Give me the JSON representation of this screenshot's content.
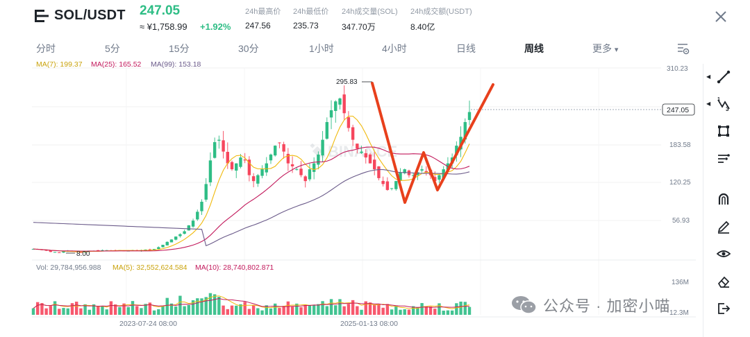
{
  "header": {
    "pair": "SOL/USDT",
    "price": "247.05",
    "price_cny": "≈ ¥1,758.99",
    "change": "+1.92%",
    "stats": [
      {
        "label": "24h最高价",
        "value": "247.56"
      },
      {
        "label": "24h最低价",
        "value": "235.73"
      },
      {
        "label": "24h成交量(SOL)",
        "value": "347.70万"
      },
      {
        "label": "24h成交额(USDT)",
        "value": "8.40亿"
      }
    ]
  },
  "tabs": [
    "分时",
    "5分",
    "15分",
    "30分",
    "1小时",
    "4小时",
    "日线",
    "周线",
    "更多"
  ],
  "active_tab": "周线",
  "more_caret": "▾",
  "indicators": {
    "ma7": "MA(7): 199.37",
    "ma25": "MA(25): 165.52",
    "ma99": "MA(99): 153.18",
    "vol": "Vol: 29,784,956.988",
    "vma5": "MA(5): 32,552,624.584",
    "vma10": "MA(10): 28,740,802.871"
  },
  "price_axis": [
    "310.23",
    "183.58",
    "120.25",
    "56.93"
  ],
  "current_price_tag": "247.05",
  "high_marker": "295.83",
  "low_marker": "8.00",
  "volume_axis": [
    "136M",
    "12.3M"
  ],
  "time_axis": [
    "2023-07-24 08:00",
    "2025-01-13 08:00"
  ],
  "watermark_chart": "BINANCE",
  "watermark_text": "公众号 · 加密小喵",
  "colors": {
    "up": "#2ebd85",
    "down": "#f6465d",
    "ma7": "#f0b90b",
    "ma25": "#c2185b",
    "ma99": "#6b5b8a",
    "drawing": "#e8401c"
  },
  "chart_data": {
    "type": "candlestick",
    "current_price": 247.05,
    "high": 295.83,
    "low": 8.0,
    "closes": [
      15,
      14,
      13,
      12,
      10,
      10,
      9,
      11,
      12,
      11,
      10,
      9,
      11,
      12,
      12,
      12,
      13,
      13,
      12,
      12,
      13,
      12,
      12,
      13,
      12,
      13,
      14,
      14,
      15,
      18,
      22,
      27,
      31,
      36,
      40,
      45,
      55,
      63,
      78,
      95,
      125,
      165,
      196,
      200,
      180,
      160,
      150,
      160,
      170,
      165,
      140,
      130,
      140,
      150,
      160,
      175,
      190,
      195,
      180,
      160,
      155,
      150,
      140,
      130,
      150,
      160,
      175,
      200,
      230,
      250,
      265,
      270,
      245,
      220,
      200,
      185,
      180,
      170,
      160,
      150,
      135,
      125,
      115,
      118,
      130,
      145,
      150,
      140,
      140,
      145,
      150,
      145,
      140,
      130,
      140,
      150,
      160,
      170,
      190,
      205,
      230,
      247
    ]
  }
}
